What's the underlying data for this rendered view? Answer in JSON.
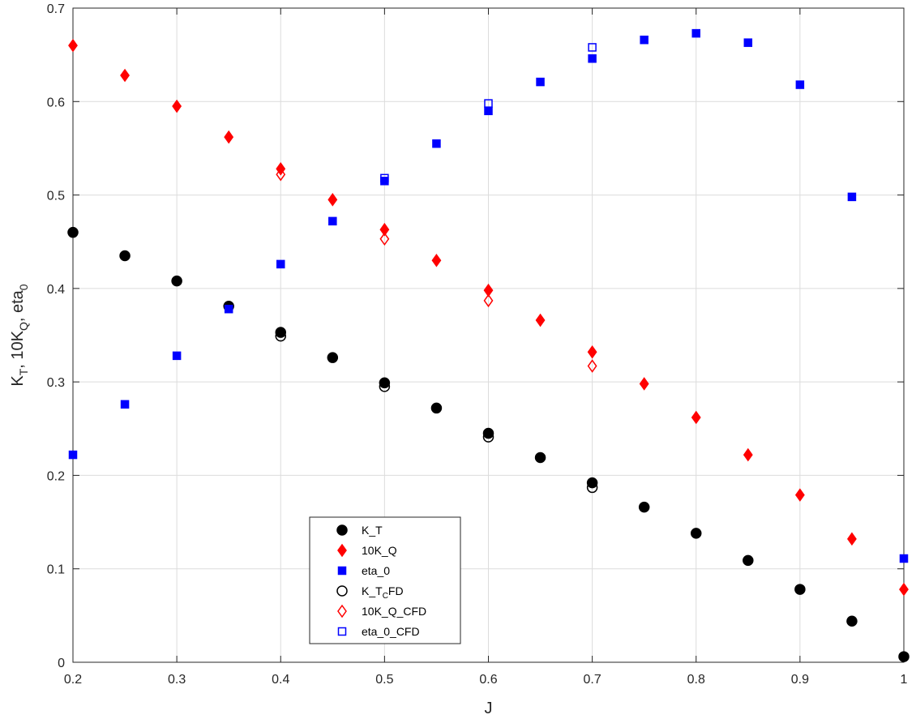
{
  "chart_data": {
    "type": "scatter",
    "xlabel": "J",
    "ylabel_parts": [
      "K",
      "T",
      ", 10K",
      "Q",
      ", eta",
      "0"
    ],
    "xlim": [
      0.2,
      1.0
    ],
    "ylim": [
      0,
      0.7
    ],
    "grid": true,
    "legend_position": "bottom-center",
    "x_ticks": [
      0.2,
      0.3,
      0.4,
      0.5,
      0.6,
      0.7,
      0.8,
      0.9,
      1.0
    ],
    "x_tick_labels": [
      "0.2",
      "0.3",
      "0.4",
      "0.5",
      "0.6",
      "0.7",
      "0.8",
      "0.9",
      "1"
    ],
    "y_ticks": [
      0,
      0.1,
      0.2,
      0.3,
      0.4,
      0.5,
      0.6,
      0.7
    ],
    "y_tick_labels": [
      "0",
      "0.1",
      "0.2",
      "0.3",
      "0.4",
      "0.5",
      "0.6",
      "0.7"
    ],
    "series": [
      {
        "name": "K_T",
        "marker": "circle",
        "filled": true,
        "color": "#000000",
        "x": [
          0.2,
          0.25,
          0.3,
          0.35,
          0.4,
          0.45,
          0.5,
          0.55,
          0.6,
          0.65,
          0.7,
          0.75,
          0.8,
          0.85,
          0.9,
          0.95,
          1.0
        ],
        "y": [
          0.46,
          0.435,
          0.408,
          0.381,
          0.353,
          0.326,
          0.299,
          0.272,
          0.245,
          0.219,
          0.192,
          0.166,
          0.138,
          0.109,
          0.078,
          0.044,
          0.006
        ]
      },
      {
        "name": "10K_Q",
        "marker": "diamond",
        "filled": true,
        "color": "#ff0000",
        "x": [
          0.2,
          0.25,
          0.3,
          0.35,
          0.4,
          0.45,
          0.5,
          0.55,
          0.6,
          0.65,
          0.7,
          0.75,
          0.8,
          0.85,
          0.9,
          0.95,
          1.0
        ],
        "y": [
          0.66,
          0.628,
          0.595,
          0.562,
          0.528,
          0.495,
          0.463,
          0.43,
          0.398,
          0.366,
          0.332,
          0.298,
          0.262,
          0.222,
          0.179,
          0.132,
          0.078
        ]
      },
      {
        "name": "eta_0",
        "marker": "square",
        "filled": true,
        "color": "#0000ff",
        "x": [
          0.2,
          0.25,
          0.3,
          0.35,
          0.4,
          0.45,
          0.5,
          0.55,
          0.6,
          0.65,
          0.7,
          0.75,
          0.8,
          0.85,
          0.9,
          0.95,
          1.0
        ],
        "y": [
          0.222,
          0.276,
          0.328,
          0.378,
          0.426,
          0.472,
          0.515,
          0.555,
          0.59,
          0.621,
          0.646,
          0.666,
          0.673,
          0.663,
          0.618,
          0.498,
          0.111
        ]
      },
      {
        "name": "K_T_CFD",
        "name_parts": [
          "K_T",
          "C",
          "FD"
        ],
        "marker": "circle",
        "filled": false,
        "color": "#000000",
        "x": [
          0.4,
          0.5,
          0.6,
          0.7
        ],
        "y": [
          0.349,
          0.295,
          0.241,
          0.187
        ]
      },
      {
        "name": "10K_Q_CFD",
        "marker": "diamond",
        "filled": false,
        "color": "#ff0000",
        "x": [
          0.4,
          0.5,
          0.6,
          0.7
        ],
        "y": [
          0.522,
          0.453,
          0.387,
          0.317
        ]
      },
      {
        "name": "eta_0_CFD",
        "marker": "square",
        "filled": false,
        "color": "#0000ff",
        "x": [
          0.5,
          0.6,
          0.7
        ],
        "y": [
          0.518,
          0.598,
          0.658
        ]
      }
    ]
  }
}
